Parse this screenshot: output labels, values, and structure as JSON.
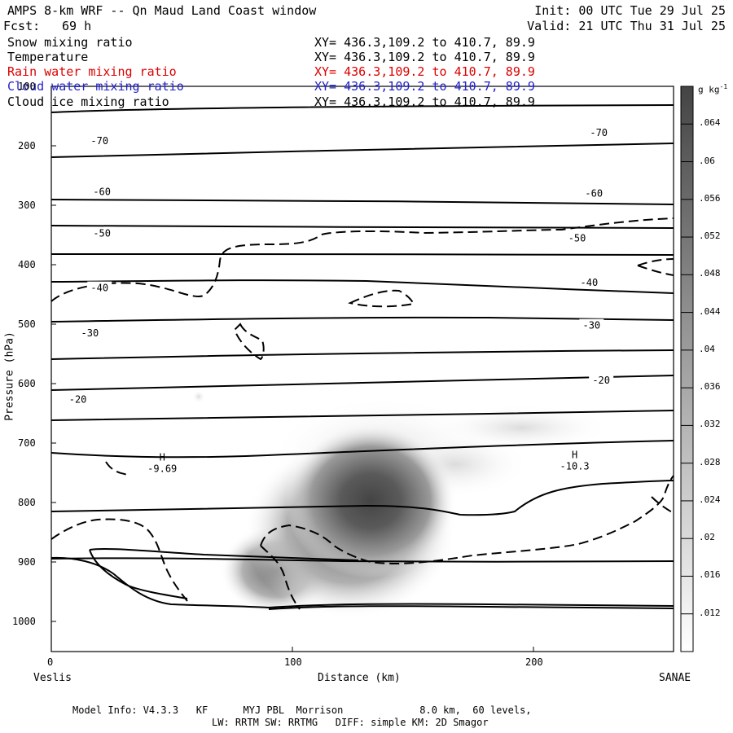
{
  "header": {
    "title": "AMPS 8-km WRF -- Qn Maud Land Coast window",
    "init": "Init: 00 UTC Tue 29 Jul 25",
    "fcst_label": "Fcst:",
    "fcst_value": "69 h",
    "valid": "Valid: 21 UTC Thu 31 Jul 25"
  },
  "fields": [
    {
      "name": "Snow mixing ratio",
      "xy": "XY= 436.3,109.2 to 410.7, 89.9",
      "color": "#000000"
    },
    {
      "name": "Temperature",
      "xy": "XY= 436.3,109.2 to 410.7, 89.9",
      "color": "#000000"
    },
    {
      "name": "Rain water mixing ratio",
      "xy": "XY= 436.3,109.2 to 410.7, 89.9",
      "color": "#dd0000"
    },
    {
      "name": "Cloud water mixing ratio",
      "xy": "XY= 436.3,109.2 to 410.7, 89.9",
      "color": "#2222cc"
    },
    {
      "name": "Cloud ice mixing ratio",
      "xy": "XY= 436.3,109.2 to 410.7, 89.9",
      "color": "#000000"
    }
  ],
  "chart_data": {
    "type": "heatmap",
    "xlabel": "Distance (km)",
    "ylabel": "Pressure (hPa)",
    "xlim": [
      0,
      258
    ],
    "ylim": [
      1050,
      100
    ],
    "x_ticks": [
      0,
      100,
      200
    ],
    "y_ticks": [
      100,
      200,
      300,
      400,
      500,
      600,
      700,
      800,
      900,
      1000
    ],
    "left_endpoint": "Veslis",
    "right_endpoint": "SANAE",
    "colorbar": {
      "unit_label": "g kg",
      "unit_exponent": "-1",
      "levels": [
        ".012",
        ".016",
        ".02",
        ".024",
        ".028",
        ".032",
        ".036",
        ".04",
        ".044",
        ".048",
        ".052",
        ".056",
        ".06",
        ".064"
      ],
      "min": 0.008,
      "max": 0.068
    },
    "shaded_field": {
      "name": "Snow mixing ratio",
      "max_near": {
        "distance_km": 132,
        "pressure_hPa": 810
      },
      "peak_value": 0.066
    },
    "isotherm_labels": [
      {
        "text": "-70",
        "x": 20,
        "p": 192
      },
      {
        "text": "-70",
        "x": 227,
        "p": 178
      },
      {
        "text": "-60",
        "x": 21,
        "p": 277
      },
      {
        "text": "-60",
        "x": 225,
        "p": 280
      },
      {
        "text": "-50",
        "x": 21,
        "p": 347
      },
      {
        "text": "-50",
        "x": 218,
        "p": 355
      },
      {
        "text": "-40",
        "x": 20,
        "p": 439
      },
      {
        "text": "-40",
        "x": 223,
        "p": 430
      },
      {
        "text": "-30",
        "x": 16,
        "p": 515
      },
      {
        "text": "-30",
        "x": 224,
        "p": 502
      },
      {
        "text": "-20",
        "x": 11,
        "p": 626
      },
      {
        "text": "-20",
        "x": 228,
        "p": 594
      }
    ],
    "high_labels": [
      {
        "text": "H",
        "value": "-9.69",
        "x": 46,
        "p": 729
      },
      {
        "text": "H",
        "value": "-10.3",
        "x": 217,
        "p": 725
      }
    ]
  },
  "footer": {
    "line1": "Model Info: V4.3.3   KF      MYJ PBL  Morrison             8.0 km,  60 levels,",
    "line2": "LW: RRTM SW: RRTMG   DIFF: simple KM: 2D Smagor"
  }
}
